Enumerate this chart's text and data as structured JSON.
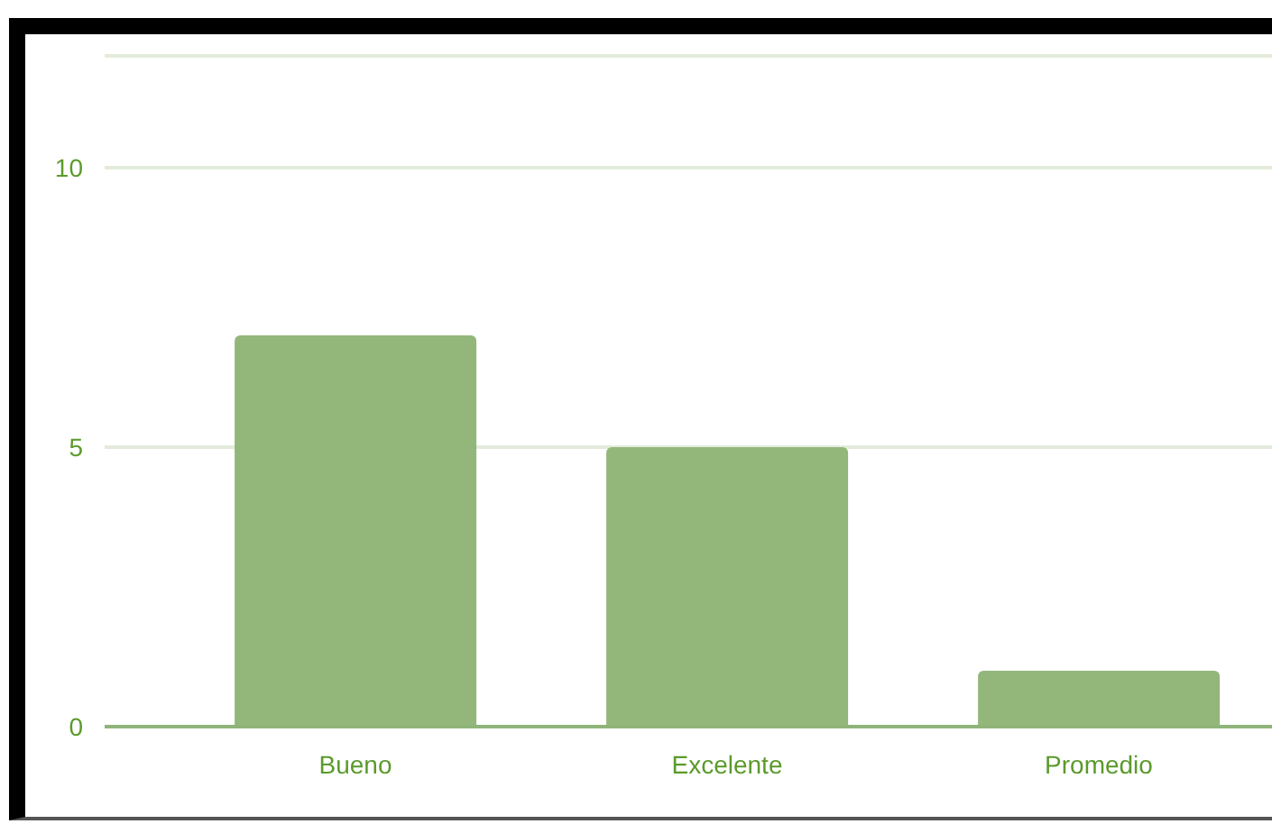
{
  "chart_data": {
    "type": "bar",
    "categories": [
      "Bueno",
      "Excelente",
      "Promedio"
    ],
    "values": [
      7,
      5,
      1
    ],
    "color": "#93b67b",
    "ylim": [
      0,
      12
    ],
    "yticks": [
      0,
      5,
      10
    ],
    "grid": "y"
  }
}
